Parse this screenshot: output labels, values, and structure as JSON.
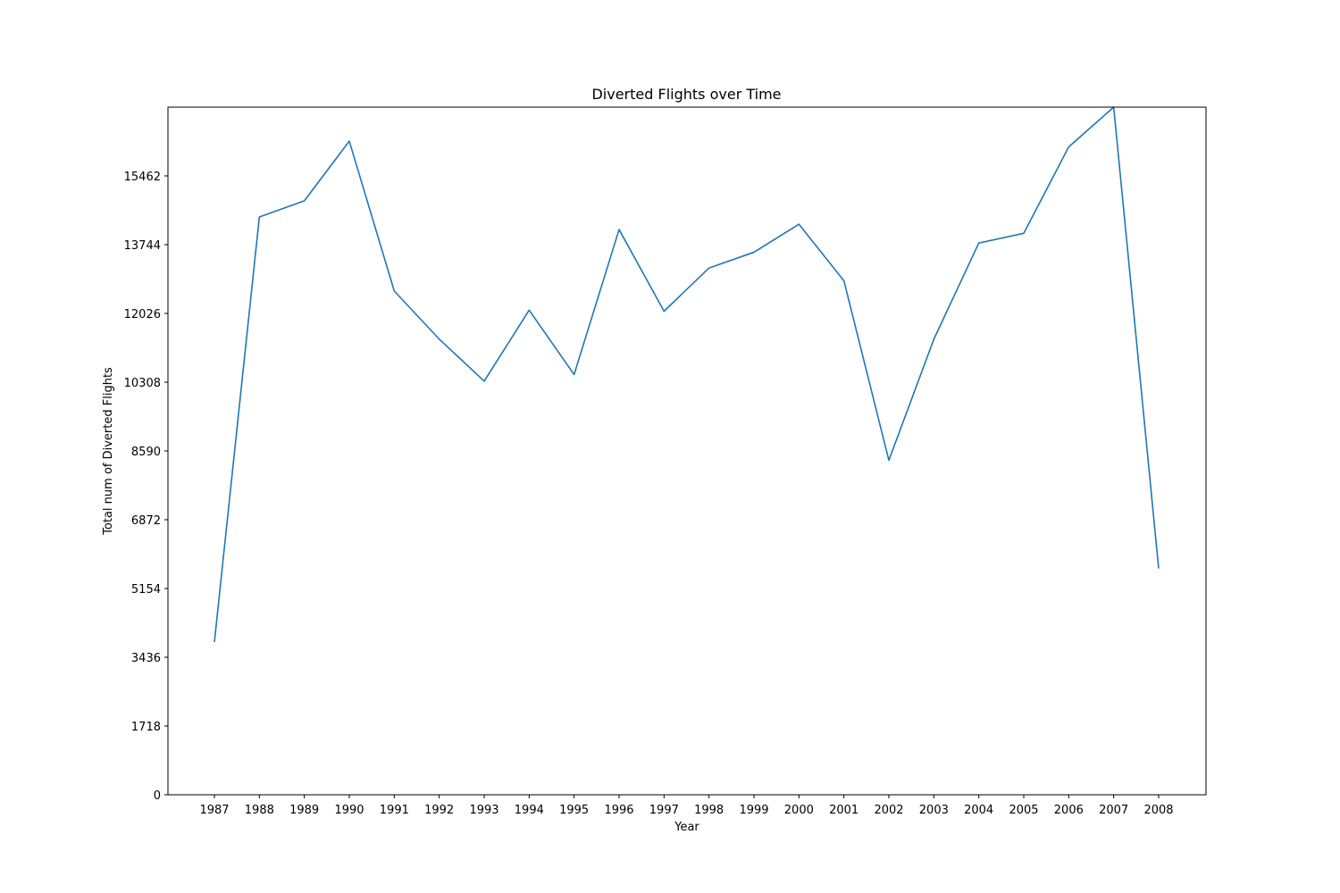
{
  "chart_data": {
    "type": "line",
    "title": "Diverted Flights over Time",
    "xlabel": "Year",
    "ylabel": "Total num of Diverted Flights",
    "x": [
      1987,
      1988,
      1989,
      1990,
      1991,
      1992,
      1993,
      1994,
      1995,
      1996,
      1997,
      1998,
      1999,
      2000,
      2001,
      2002,
      2003,
      2004,
      2005,
      2006,
      2007,
      2008
    ],
    "series": [
      {
        "color": "#1f77b4",
        "values": [
          3815,
          14436,
          14839,
          16330,
          12586,
          11384,
          10333,
          12107,
          10499,
          14121,
          12081,
          13161,
          13555,
          14254,
          12843,
          8356,
          11381,
          13784,
          14028,
          16186,
          17179,
          5654
        ]
      }
    ],
    "yticks": [
      0,
      1718,
      3436,
      5154,
      6872,
      8590,
      10308,
      12026,
      13744,
      15462
    ],
    "ylim": [
      0,
      17179
    ],
    "grid": false
  }
}
